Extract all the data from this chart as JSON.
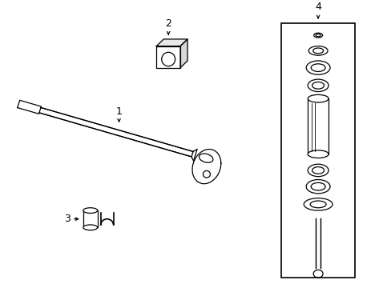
{
  "bg_color": "#ffffff",
  "line_color": "#000000",
  "label1": "1",
  "label2": "2",
  "label3": "3",
  "label4": "4",
  "figsize": [
    4.89,
    3.6
  ],
  "dpi": 100
}
